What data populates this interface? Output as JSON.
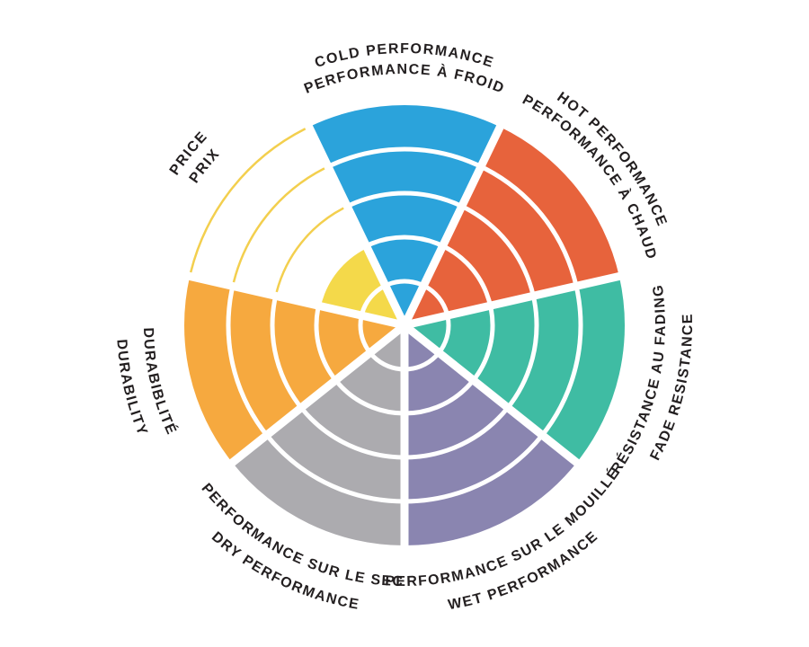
{
  "chart_data": {
    "type": "polar-sector-wheel",
    "title": "",
    "description": "Seven-segment circular rating wheel with 5 concentric rings per segment; every attribute is filled to 5 of 5 rings except Price, which is filled to 2 of 5 with the remaining ring boundaries drawn as thin yellow outline arcs.",
    "max": 5,
    "rings": 5,
    "direction": "clockwise",
    "start": "top",
    "background": "#ffffff",
    "ring_divider_color": "#ffffff",
    "label_color": "#231f20",
    "sectors": [
      {
        "id": "cold",
        "label_en": "COLD PERFORMANCE",
        "label_fr": "PERFORMANCE À FROID",
        "value": 5,
        "color": "#2ba3db",
        "label_side": "outward"
      },
      {
        "id": "hot",
        "label_en": "HOT PERFORMANCE",
        "label_fr": "PERFORMANCE À CHAUD",
        "value": 5,
        "color": "#e7633c",
        "label_side": "outward"
      },
      {
        "id": "fade",
        "label_en": "FADE RESISTANCE",
        "label_fr": "RÉSISTANCE AU FADING",
        "value": 5,
        "color": "#3fbca3",
        "label_side": "inward"
      },
      {
        "id": "wet",
        "label_en": "WET PERFORMANCE",
        "label_fr": "PERFORMANCE SUR LE MOUILLÉ",
        "value": 5,
        "color": "#8a85b0",
        "label_side": "inward"
      },
      {
        "id": "dry",
        "label_en": "DRY PERFORMANCE",
        "label_fr": "PERFORMANCE SUR LE SEC",
        "value": 5,
        "color": "#acabaf",
        "label_side": "inward"
      },
      {
        "id": "durability",
        "label_en": "DURABILITY",
        "label_fr": "DURABIBLITÉ",
        "value": 5,
        "color": "#f6a93f",
        "label_side": "inward"
      },
      {
        "id": "price",
        "label_en": "PRICE",
        "label_fr": "PRIX",
        "value": 2,
        "color": "#f4d94a",
        "unfilled_outline_color": "#f3cf4e",
        "label_side": "outward"
      }
    ]
  }
}
